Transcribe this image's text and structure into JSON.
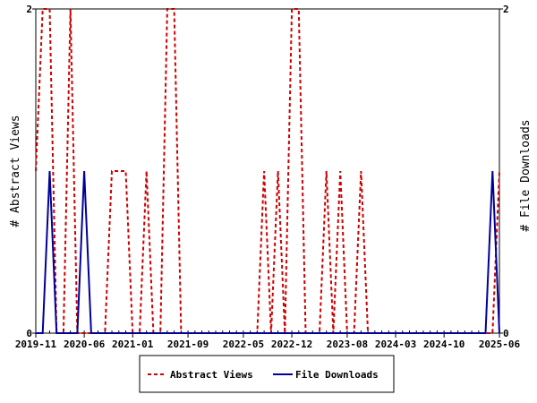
{
  "chart_data": {
    "type": "line",
    "x_tick_labels": [
      "2019-11",
      "2020-06",
      "2021-01",
      "2021-09",
      "2022-05",
      "2022-12",
      "2023-08",
      "2024-03",
      "2024-10",
      "2025-06"
    ],
    "left_axis": {
      "label": "# Abstract Views",
      "ticks": [
        "0",
        "2"
      ],
      "ylim": [
        0,
        2
      ]
    },
    "right_axis": {
      "label": "# File Downloads",
      "ticks": [
        "0",
        "2"
      ],
      "ylim": [
        0,
        2
      ]
    },
    "x_range": [
      "2019-11",
      "2025-06"
    ],
    "grid": false,
    "legend_position": "bottom",
    "series": [
      {
        "name": "Abstract Views",
        "axis": "left",
        "color": "#cc0000",
        "style": "dashed",
        "x": [
          "2019-11",
          "2019-12",
          "2020-01",
          "2020-02",
          "2020-03",
          "2020-04",
          "2020-05",
          "2020-06",
          "2020-07",
          "2020-08",
          "2020-09",
          "2020-10",
          "2020-11",
          "2020-12",
          "2021-01",
          "2021-02",
          "2021-03",
          "2021-04",
          "2021-05",
          "2021-06",
          "2021-07",
          "2021-08",
          "2021-09",
          "2021-10",
          "2021-11",
          "2021-12",
          "2022-01",
          "2022-02",
          "2022-03",
          "2022-04",
          "2022-05",
          "2022-06",
          "2022-07",
          "2022-08",
          "2022-09",
          "2022-10",
          "2022-11",
          "2022-12",
          "2023-01",
          "2023-02",
          "2023-03",
          "2023-04",
          "2023-05",
          "2023-06",
          "2023-07",
          "2023-08",
          "2023-09",
          "2023-10",
          "2023-11",
          "2023-12",
          "2024-01",
          "2024-02",
          "2024-03",
          "2024-04",
          "2024-05",
          "2024-06",
          "2024-07",
          "2024-08",
          "2024-09",
          "2024-10",
          "2024-11",
          "2024-12",
          "2025-01",
          "2025-02",
          "2025-03",
          "2025-04",
          "2025-05",
          "2025-06"
        ],
        "values": [
          1,
          2,
          2,
          0,
          0,
          2,
          0,
          0,
          0,
          0,
          0,
          1,
          1,
          1,
          0,
          0,
          1,
          0,
          0,
          2,
          2,
          0,
          0,
          0,
          0,
          0,
          0,
          0,
          0,
          0,
          0,
          0,
          0,
          1,
          0,
          1,
          0,
          2,
          2,
          0,
          0,
          0,
          1,
          0,
          1,
          0,
          0,
          1,
          0,
          0,
          0,
          0,
          0,
          0,
          0,
          0,
          0,
          0,
          0,
          0,
          0,
          0,
          0,
          0,
          0,
          0,
          0,
          1
        ]
      },
      {
        "name": "File Downloads",
        "axis": "right",
        "color": "#000099",
        "style": "solid",
        "x": [
          "2019-11",
          "2019-12",
          "2020-01",
          "2020-02",
          "2020-03",
          "2020-04",
          "2020-05",
          "2020-06",
          "2020-07",
          "2020-08",
          "2020-09",
          "2020-10",
          "2020-11",
          "2020-12",
          "2021-01",
          "2021-02",
          "2021-03",
          "2021-04",
          "2021-05",
          "2021-06",
          "2021-07",
          "2021-08",
          "2021-09",
          "2021-10",
          "2021-11",
          "2021-12",
          "2022-01",
          "2022-02",
          "2022-03",
          "2022-04",
          "2022-05",
          "2022-06",
          "2022-07",
          "2022-08",
          "2022-09",
          "2022-10",
          "2022-11",
          "2022-12",
          "2023-01",
          "2023-02",
          "2023-03",
          "2023-04",
          "2023-05",
          "2023-06",
          "2023-07",
          "2023-08",
          "2023-09",
          "2023-10",
          "2023-11",
          "2023-12",
          "2024-01",
          "2024-02",
          "2024-03",
          "2024-04",
          "2024-05",
          "2024-06",
          "2024-07",
          "2024-08",
          "2024-09",
          "2024-10",
          "2024-11",
          "2024-12",
          "2025-01",
          "2025-02",
          "2025-03",
          "2025-04",
          "2025-05",
          "2025-06"
        ],
        "values": [
          0,
          0,
          1,
          0,
          0,
          0,
          0,
          1,
          0,
          0,
          0,
          0,
          0,
          0,
          0,
          0,
          0,
          0,
          0,
          0,
          0,
          0,
          0,
          0,
          0,
          0,
          0,
          0,
          0,
          0,
          0,
          0,
          0,
          0,
          0,
          0,
          0,
          0,
          0,
          0,
          0,
          0,
          0,
          0,
          0,
          0,
          0,
          0,
          0,
          0,
          0,
          0,
          0,
          0,
          0,
          0,
          0,
          0,
          0,
          0,
          0,
          0,
          0,
          0,
          0,
          0,
          1,
          0
        ]
      }
    ]
  }
}
